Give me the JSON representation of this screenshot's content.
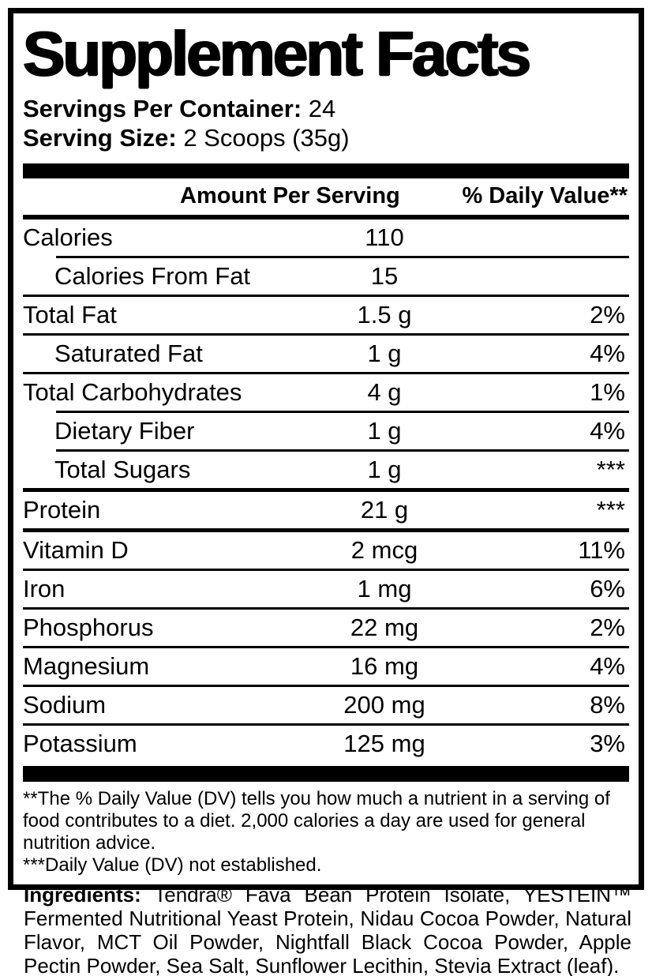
{
  "colors": {
    "ink": "#000000",
    "paper": "#ffffff"
  },
  "label": {
    "title": "Supplement Facts",
    "servings_per_container_label": "Servings Per Container:",
    "servings_per_container_value": "24",
    "serving_size_label": "Serving Size:",
    "serving_size_value": "2 Scoops (35g)",
    "columns": {
      "amount": "Amount Per Serving",
      "dv": "% Daily Value**"
    },
    "rows": [
      {
        "name": "Calories",
        "amount": "110",
        "dv": "",
        "indent": false,
        "sep": "thin-indent"
      },
      {
        "name": "Calories From Fat",
        "amount": "15",
        "dv": "",
        "indent": true,
        "sep": "thin-full"
      },
      {
        "name": "Total Fat",
        "amount": "1.5 g",
        "dv": "2%",
        "indent": false,
        "sep": "thin-full"
      },
      {
        "name": "Saturated Fat",
        "amount": "1 g",
        "dv": "4%",
        "indent": true,
        "sep": "thin-full"
      },
      {
        "name": "Total Carbohydrates",
        "amount": "4 g",
        "dv": "1%",
        "indent": false,
        "sep": "thin-indent"
      },
      {
        "name": "Dietary Fiber",
        "amount": "1 g",
        "dv": "4%",
        "indent": true,
        "sep": "thin-indent"
      },
      {
        "name": "Total Sugars",
        "amount": "1 g",
        "dv": "***",
        "indent": true,
        "sep": "medium-full"
      },
      {
        "name": "Protein",
        "amount": "21 g",
        "dv": "***",
        "indent": false,
        "sep": "medium-full"
      },
      {
        "name": "Vitamin D",
        "amount": "2 mcg",
        "dv": "11%",
        "indent": false,
        "sep": "thin-full"
      },
      {
        "name": "Iron",
        "amount": "1 mg",
        "dv": "6%",
        "indent": false,
        "sep": "thin-full"
      },
      {
        "name": "Phosphorus",
        "amount": "22 mg",
        "dv": "2%",
        "indent": false,
        "sep": "thin-full"
      },
      {
        "name": "Magnesium",
        "amount": "16 mg",
        "dv": "4%",
        "indent": false,
        "sep": "thin-full"
      },
      {
        "name": "Sodium",
        "amount": "200 mg",
        "dv": "8%",
        "indent": false,
        "sep": "thin-full"
      },
      {
        "name": "Potassium",
        "amount": "125 mg",
        "dv": "3%",
        "indent": false,
        "sep": "none"
      }
    ],
    "footnotes": [
      "**The % Daily Value (DV) tells you how much a nutrient in a serving of\nfood contributes to a diet. 2,000 calories a day are used for general\nnutrition advice.",
      "***Daily Value (DV) not established."
    ],
    "ingredients_label": "Ingredients:",
    "ingredients_text": "Tendra® Fava Bean Protein Isolate, YESTEIN™ Fermented Nutritional Yeast Protein, Nidau Cocoa Powder, Natural Flavor, MCT Oil Powder, Nightfall Black Cocoa Powder, Apple Pectin Powder, Sea Salt, Sunflower Lecithin, Stevia Extract (leaf)."
  }
}
